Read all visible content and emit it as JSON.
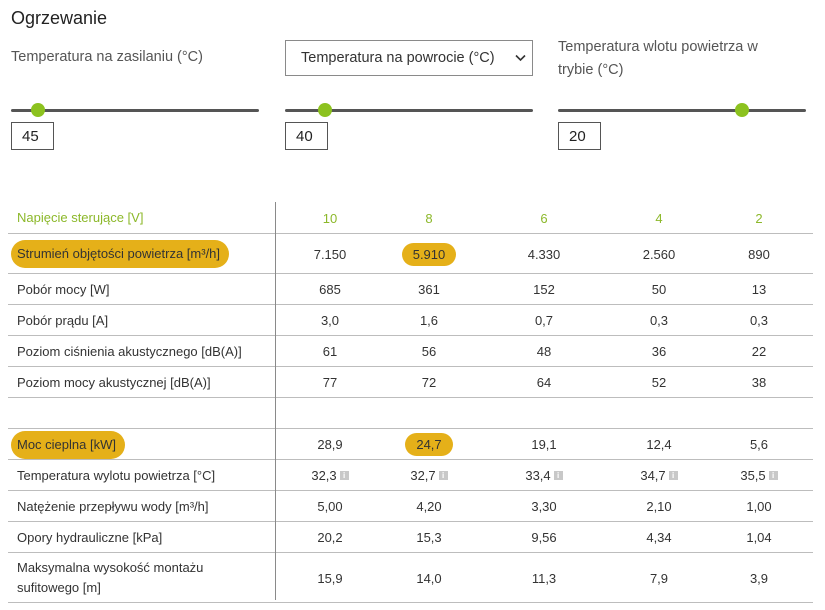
{
  "title": "Ogrzewanie",
  "controls": {
    "supply_label": "Temperatura na zasilaniu (°C)",
    "return_select": "Temperatura na powrocie (°C)",
    "inlet_label_line1": "Temperatura wlotu powietrza w",
    "inlet_label_line2": "trybie (°C)",
    "supply_value": "45",
    "return_value": "40",
    "inlet_value": "20"
  },
  "slider_levels": {
    "supply": 0.11,
    "return": 0.16,
    "inlet": 0.74
  },
  "accent_color": "#8cc21f",
  "highlight_color": "#e5b019",
  "icons": {
    "dropdown": "chevron-down-icon",
    "info": "info-icon"
  },
  "table": {
    "header": {
      "label": "Napięcie sterujące [V]",
      "values": [
        "10",
        "8",
        "6",
        "4",
        "2"
      ]
    },
    "rows": [
      {
        "label": "Strumień objętości powietrza [m³/h]",
        "values": [
          "7.150",
          "5.910",
          "4.330",
          "2.560",
          "890"
        ],
        "highlight_label": true,
        "highlight_col": 1
      },
      {
        "label": "Pobór mocy [W]",
        "values": [
          "685",
          "361",
          "152",
          "50",
          "13"
        ]
      },
      {
        "label": "Pobór prądu [A]",
        "values": [
          "3,0",
          "1,6",
          "0,7",
          "0,3",
          "0,3"
        ]
      },
      {
        "label": "Poziom ciśnienia akustycznego [dB(A)]",
        "values": [
          "61",
          "56",
          "48",
          "36",
          "22"
        ]
      },
      {
        "label": "Poziom mocy akustycznej [dB(A)]",
        "values": [
          "77",
          "72",
          "64",
          "52",
          "38"
        ]
      },
      {
        "label": "",
        "values": [
          "",
          "",
          "",
          "",
          ""
        ]
      },
      {
        "label": "Moc cieplna [kW]",
        "values": [
          "28,9",
          "24,7",
          "19,1",
          "12,4",
          "5,6"
        ],
        "highlight_label": true,
        "highlight_col": 1
      },
      {
        "label": "Temperatura wylotu powietrza [°C]",
        "values": [
          "32,3",
          "32,7",
          "33,4",
          "34,7",
          "35,5"
        ],
        "info": true
      },
      {
        "label": "Natężenie przepływu wody [m³/h]",
        "values": [
          "5,00",
          "4,20",
          "3,30",
          "2,10",
          "1,00"
        ]
      },
      {
        "label": "Opory hydrauliczne [kPa]",
        "values": [
          "20,2",
          "15,3",
          "9,56",
          "4,34",
          "1,04"
        ]
      },
      {
        "label_line1": "Maksymalna wysokość montażu",
        "label_line2": "sufitowego [m]",
        "values": [
          "15,9",
          "14,0",
          "11,3",
          "7,9",
          "3,9"
        ],
        "two_line": true
      }
    ]
  }
}
